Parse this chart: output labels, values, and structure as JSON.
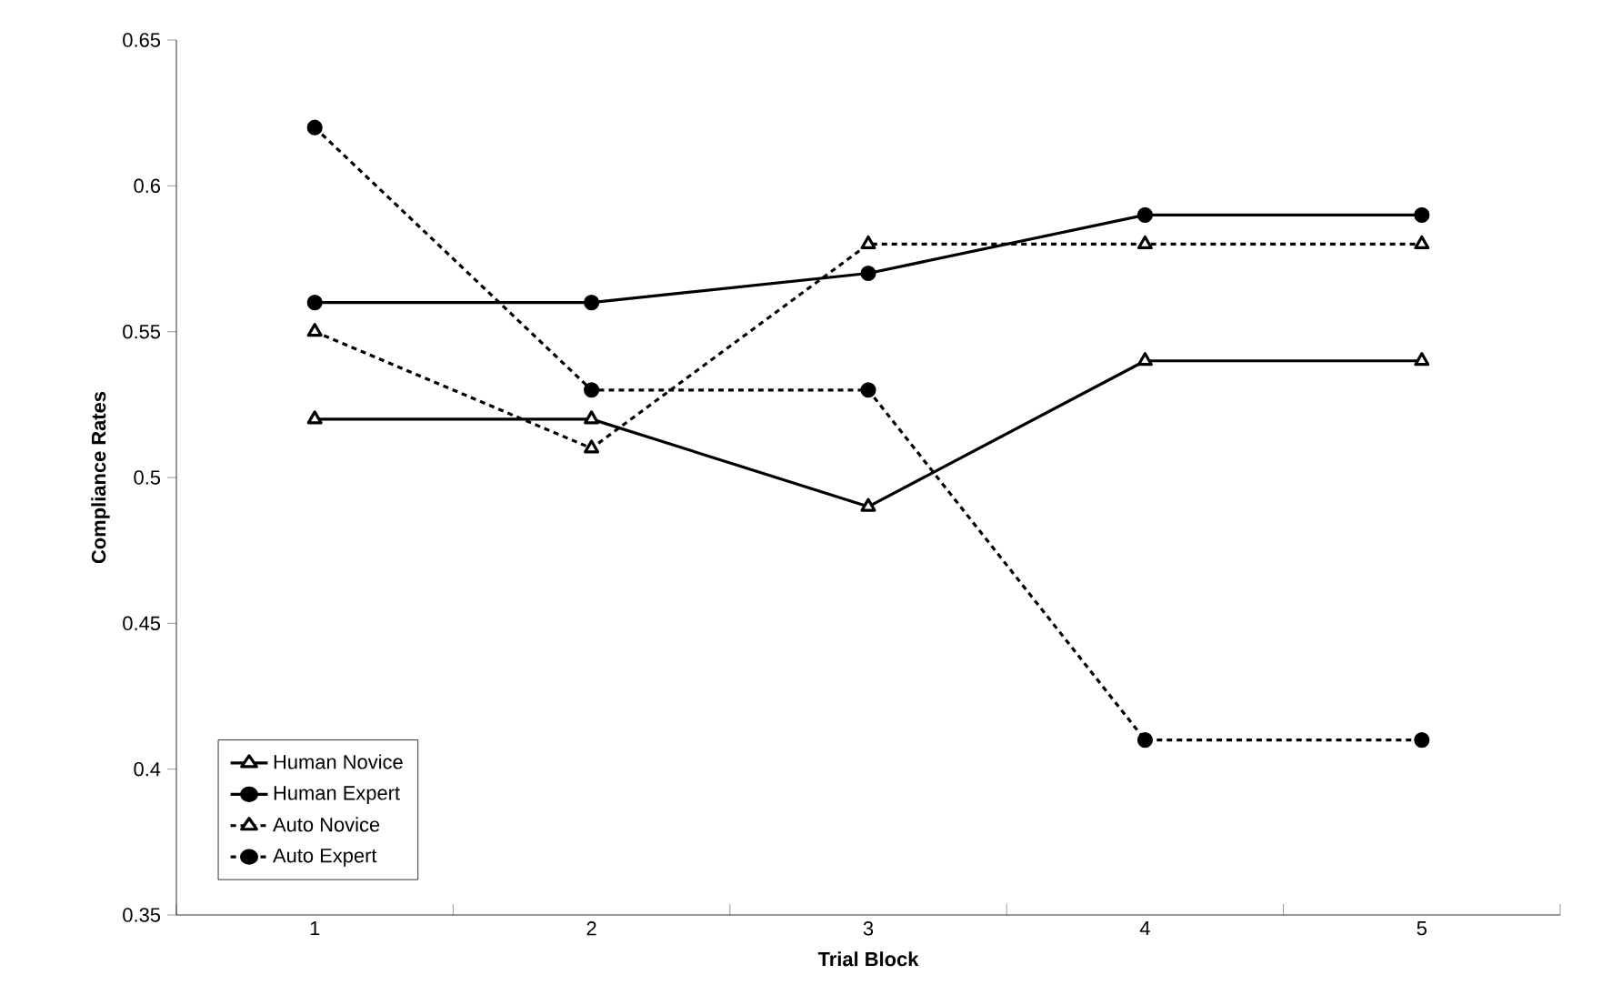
{
  "chart_data": {
    "type": "line",
    "xlabel": "Trial Block",
    "ylabel": "Compliance Rates",
    "categories": [
      "1",
      "2",
      "3",
      "4",
      "5"
    ],
    "series": [
      {
        "name": "Human Novice",
        "color": "#000000",
        "marker": "triangle",
        "line_style": "solid",
        "values": [
          0.52,
          0.52,
          0.49,
          0.54,
          0.54
        ]
      },
      {
        "name": "Human Expert",
        "color": "#000000",
        "marker": "circle",
        "line_style": "solid",
        "values": [
          0.56,
          0.56,
          0.57,
          0.59,
          0.59
        ]
      },
      {
        "name": "Auto Novice",
        "color": "#000000",
        "marker": "triangle",
        "line_style": "dashed",
        "values": [
          0.55,
          0.51,
          0.58,
          0.58,
          0.58
        ]
      },
      {
        "name": "Auto Expert",
        "color": "#000000",
        "marker": "circle",
        "line_style": "dashed",
        "values": [
          0.62,
          0.53,
          0.53,
          0.41,
          0.41
        ]
      }
    ],
    "ylim": [
      0.35,
      0.65
    ],
    "yticks": [
      0.35,
      0.4,
      0.45,
      0.5,
      0.55,
      0.6,
      0.65
    ],
    "grid": false,
    "legend": "bottom left"
  }
}
